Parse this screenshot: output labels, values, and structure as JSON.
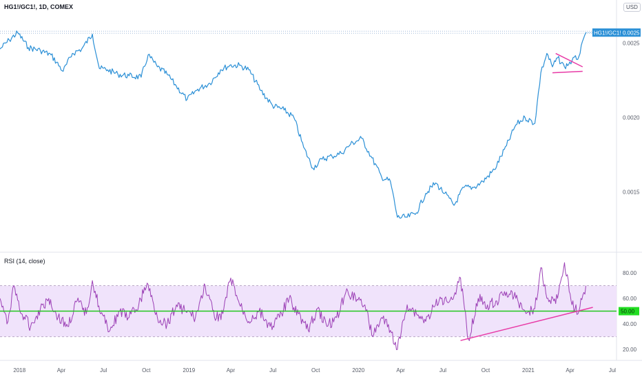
{
  "header": {
    "title": "HG1!/GC1!, 1D, COMEX",
    "currency_button": "USD",
    "rsi_title": "RSI (14, close)"
  },
  "colors": {
    "price_line": "#2a8fd6",
    "rsi_line": "#9b3fb5",
    "rsi_band": "#f0e3fb",
    "trend_line": "#e83aa6",
    "mid_line": "#22c61c",
    "price_label_bg": "#2a8fd6",
    "rsi_label_bg": "#22dd22"
  },
  "chart_data": [
    {
      "type": "line",
      "series": [
        {
          "name": "HG1!/GC1!",
          "x": [
            "2017-11-20",
            "2017-12-10",
            "2017-12-28",
            "2018-01-20",
            "2018-02-15",
            "2018-03-10",
            "2018-04-05",
            "2018-04-25",
            "2018-05-15",
            "2018-06-07",
            "2018-06-22",
            "2018-07-10",
            "2018-08-01",
            "2018-08-25",
            "2018-09-20",
            "2018-10-05",
            "2018-10-25",
            "2018-11-15",
            "2018-12-05",
            "2018-12-28",
            "2019-01-20",
            "2019-02-15",
            "2019-03-10",
            "2019-03-30",
            "2019-04-20",
            "2019-05-10",
            "2019-06-05",
            "2019-06-30",
            "2019-07-25",
            "2019-08-15",
            "2019-09-05",
            "2019-09-25",
            "2019-10-15",
            "2019-11-05",
            "2019-11-25",
            "2019-12-15",
            "2020-01-08",
            "2020-01-28",
            "2020-02-20",
            "2020-03-10",
            "2020-03-25",
            "2020-04-15",
            "2020-05-05",
            "2020-05-25",
            "2020-06-15",
            "2020-07-05",
            "2020-07-25",
            "2020-08-15",
            "2020-09-05",
            "2020-09-25",
            "2020-10-20",
            "2020-11-15",
            "2020-12-05",
            "2020-12-25",
            "2021-01-15",
            "2021-01-28",
            "2021-02-10",
            "2021-02-22",
            "2021-03-05",
            "2021-03-20",
            "2021-04-05",
            "2021-04-20",
            "2021-05-05"
          ],
          "values": [
            0.00246,
            0.00252,
            0.00257,
            0.00247,
            0.00245,
            0.00242,
            0.00231,
            0.00243,
            0.00246,
            0.00256,
            0.00233,
            0.00232,
            0.00229,
            0.00228,
            0.00227,
            0.00242,
            0.00234,
            0.00229,
            0.00221,
            0.00212,
            0.00219,
            0.00223,
            0.00232,
            0.00235,
            0.00235,
            0.00232,
            0.00218,
            0.00208,
            0.00205,
            0.002,
            0.0018,
            0.00166,
            0.00172,
            0.00174,
            0.00176,
            0.00182,
            0.00186,
            0.00174,
            0.0016,
            0.00157,
            0.00133,
            0.00133,
            0.00136,
            0.00149,
            0.00156,
            0.00149,
            0.00141,
            0.00153,
            0.00153,
            0.00157,
            0.00165,
            0.00181,
            0.00195,
            0.002,
            0.00196,
            0.0023,
            0.00243,
            0.00234,
            0.0024,
            0.00234,
            0.00238,
            0.00241,
            0.00257
          ]
        }
      ],
      "price_label": "HG1!/GC1!",
      "price_value": "0.0025",
      "y_ticks": [
        "0.0025",
        "0.0020",
        "0.0015"
      ],
      "x_ticks": [
        "2018",
        "Apr",
        "Jul",
        "Oct",
        "2019",
        "Apr",
        "Jul",
        "Oct",
        "2020",
        "Apr",
        "Jul",
        "Oct",
        "2021",
        "Apr",
        "Jul"
      ]
    },
    {
      "type": "line",
      "series": [
        {
          "name": "RSI (14, close)",
          "x": [
            "2017-11-20",
            "2017-12-05",
            "2017-12-20",
            "2018-01-05",
            "2018-01-25",
            "2018-02-15",
            "2018-03-05",
            "2018-03-25",
            "2018-04-15",
            "2018-05-05",
            "2018-05-25",
            "2018-06-07",
            "2018-06-25",
            "2018-07-15",
            "2018-08-05",
            "2018-08-25",
            "2018-09-15",
            "2018-10-03",
            "2018-10-25",
            "2018-11-15",
            "2018-12-05",
            "2018-12-25",
            "2019-01-15",
            "2019-02-05",
            "2019-02-25",
            "2019-03-15",
            "2019-04-01",
            "2019-04-20",
            "2019-05-10",
            "2019-06-01",
            "2019-06-25",
            "2019-07-15",
            "2019-08-05",
            "2019-08-25",
            "2019-09-15",
            "2019-10-05",
            "2019-10-25",
            "2019-11-15",
            "2019-12-05",
            "2019-12-25",
            "2020-01-15",
            "2020-02-01",
            "2020-02-20",
            "2020-03-10",
            "2020-03-25",
            "2020-04-15",
            "2020-05-05",
            "2020-05-25",
            "2020-06-15",
            "2020-07-05",
            "2020-07-25",
            "2020-08-08",
            "2020-08-25",
            "2020-09-15",
            "2020-10-05",
            "2020-10-25",
            "2020-11-15",
            "2020-12-05",
            "2020-12-25",
            "2021-01-15",
            "2021-01-28",
            "2021-02-10",
            "2021-02-25",
            "2021-03-05",
            "2021-03-20",
            "2021-04-05",
            "2021-04-20",
            "2021-05-05"
          ],
          "values": [
            60,
            40,
            70,
            48,
            38,
            52,
            60,
            45,
            38,
            58,
            48,
            74,
            48,
            35,
            50,
            45,
            55,
            72,
            45,
            40,
            55,
            50,
            45,
            70,
            45,
            48,
            76,
            55,
            42,
            50,
            38,
            45,
            60,
            48,
            35,
            52,
            38,
            45,
            65,
            62,
            55,
            30,
            45,
            35,
            20,
            55,
            48,
            42,
            55,
            60,
            62,
            76,
            28,
            60,
            55,
            58,
            65,
            60,
            50,
            52,
            84,
            60,
            58,
            60,
            88,
            55,
            50,
            70
          ]
        }
      ],
      "y_ticks": [
        "80.00",
        "60.00",
        "40.00",
        "20.00"
      ],
      "mid_value": "50.00",
      "band": [
        30,
        70
      ],
      "ylim": [
        12,
        94
      ]
    }
  ]
}
